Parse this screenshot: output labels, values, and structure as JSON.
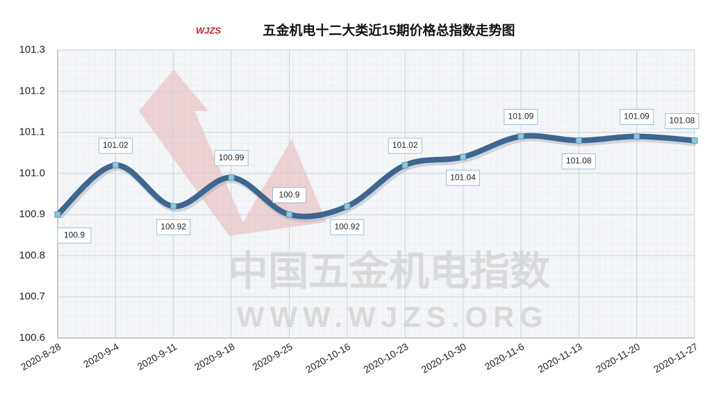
{
  "chart_data": {
    "type": "line",
    "title": "五金机电十二大类近15期价格总指数走势图",
    "logo": "WJZS",
    "watermark": [
      "中国五金机电指数",
      "WWW.WJZS.ORG"
    ],
    "categories": [
      "2020-8-28",
      "2020-9-4",
      "2020-9-11",
      "2020-9-18",
      "2020-9-25",
      "2020-10-16",
      "2020-10-23",
      "2020-10-30",
      "2020-11-6",
      "2020-11-13",
      "2020-11-20",
      "2020-11-27"
    ],
    "values": [
      100.9,
      101.02,
      100.92,
      100.99,
      100.9,
      100.92,
      101.02,
      101.04,
      101.09,
      101.08,
      101.09,
      101.08
    ],
    "color": "#3d6690",
    "ylim": [
      100.6,
      101.3
    ],
    "yticks": [
      100.6,
      100.7,
      100.8,
      100.9,
      {
        "value": 101,
        "label": "101.0"
      },
      101.1,
      101.2,
      101.3
    ],
    "grid": true
  }
}
